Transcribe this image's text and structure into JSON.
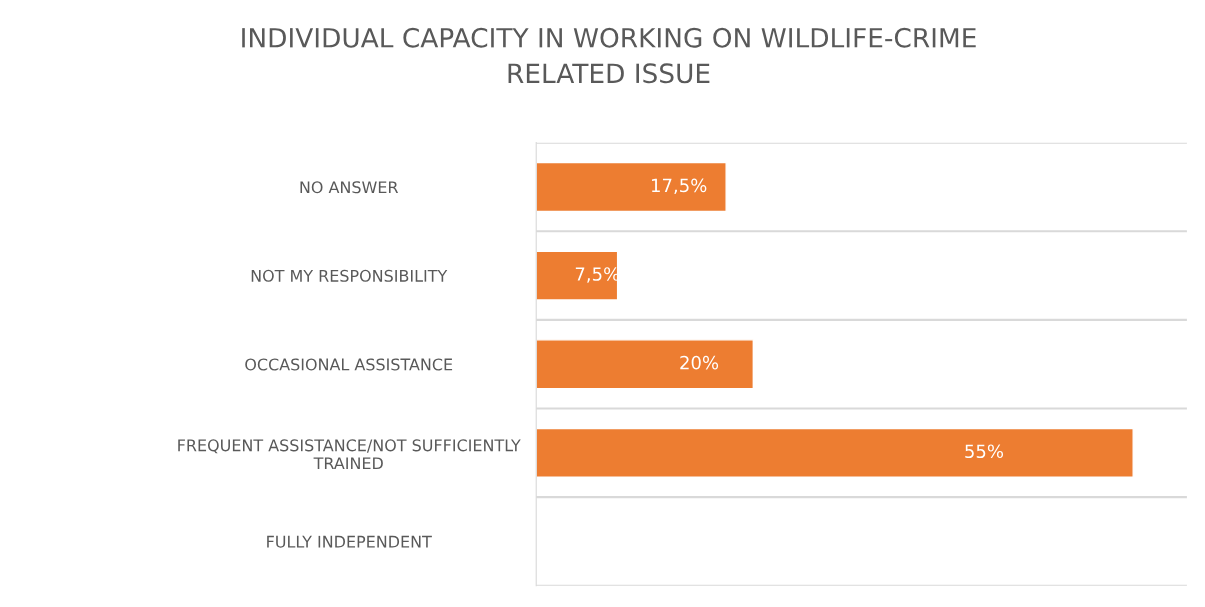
{
  "chart_data": {
    "type": "bar",
    "orientation": "horizontal",
    "title": "INDIVIDUAL CAPACITY IN WORKING ON WILDLIFE-CRIME\nRELATED ISSUE",
    "categories": [
      "NO ANSWER",
      "NOT MY RESPONSIBILITY",
      "OCCASIONAL ASSISTANCE",
      "FREQUENT ASSISTANCE/NOT SUFFICIENTLY\nTRAINED",
      "FULLY INDEPENDENT"
    ],
    "values": [
      17.5,
      7.5,
      20,
      55,
      null
    ],
    "value_labels": [
      "17,5%",
      "7,5%",
      "20%",
      "55%",
      null
    ],
    "color": "#ed7d31",
    "grid": "y"
  }
}
